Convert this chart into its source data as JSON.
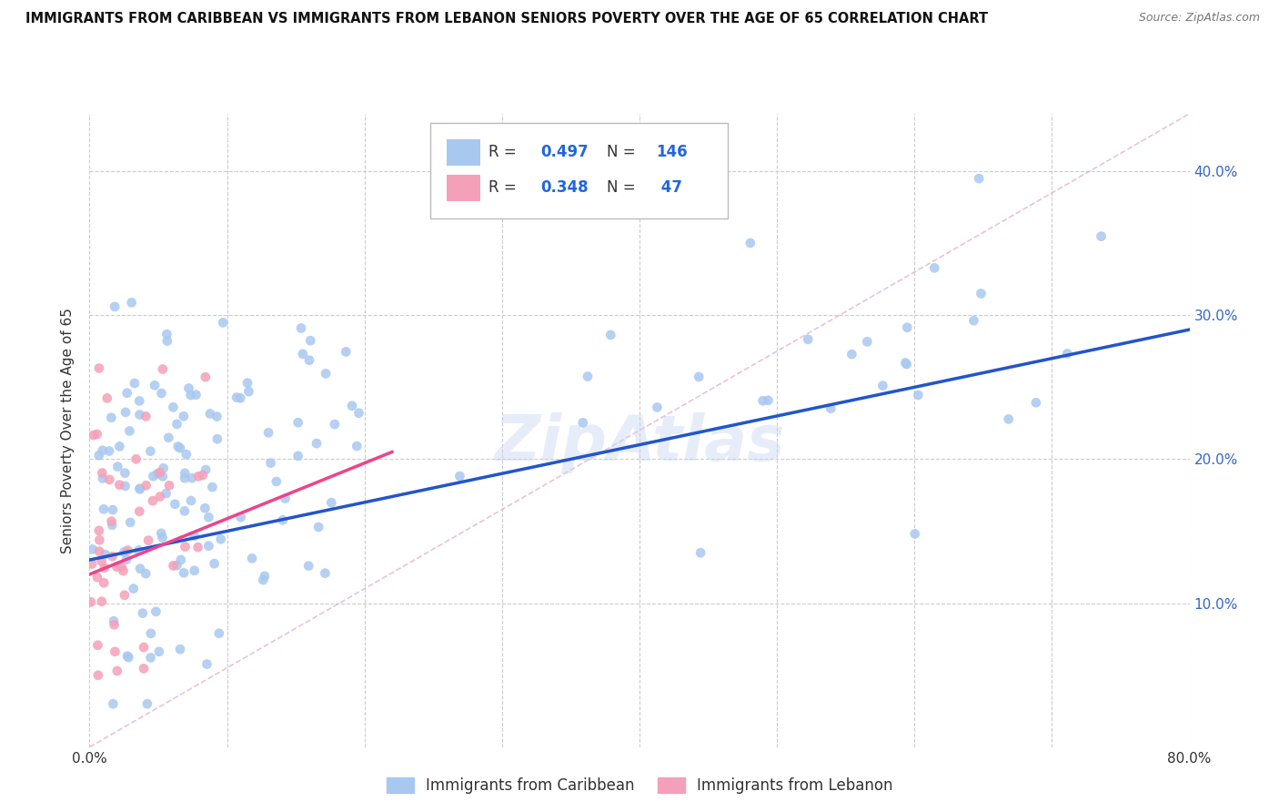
{
  "title": "IMMIGRANTS FROM CARIBBEAN VS IMMIGRANTS FROM LEBANON SENIORS POVERTY OVER THE AGE OF 65 CORRELATION CHART",
  "source": "Source: ZipAtlas.com",
  "ylabel": "Seniors Poverty Over the Age of 65",
  "xlim": [
    0.0,
    0.8
  ],
  "ylim": [
    0.0,
    0.44
  ],
  "xticks": [
    0.0,
    0.1,
    0.2,
    0.3,
    0.4,
    0.5,
    0.6,
    0.7,
    0.8
  ],
  "xticklabels": [
    "0.0%",
    "",
    "",
    "",
    "",
    "",
    "",
    "",
    "80.0%"
  ],
  "yticks": [
    0.0,
    0.1,
    0.2,
    0.3,
    0.4
  ],
  "right_yticklabels": [
    "",
    "10.0%",
    "20.0%",
    "30.0%",
    "40.0%"
  ],
  "watermark": "ZipAtlas",
  "blue_color": "#A8C8F0",
  "pink_color": "#F4A0B8",
  "line_blue": "#2255CC",
  "line_pink": "#EE4488",
  "R_blue": 0.497,
  "N_blue": 146,
  "R_pink": 0.348,
  "N_pink": 47,
  "blue_line_x0": 0.0,
  "blue_line_y0": 0.13,
  "blue_line_x1": 0.8,
  "blue_line_y1": 0.29,
  "pink_line_x0": 0.0,
  "pink_line_y0": 0.12,
  "pink_line_x1": 0.22,
  "pink_line_y1": 0.205,
  "diag_line_x0": 0.0,
  "diag_line_y0": 0.0,
  "diag_line_x1": 0.8,
  "diag_line_y1": 0.44,
  "grid_color": "#CCCCCC",
  "title_color": "#111111",
  "source_color": "#777777",
  "right_tick_color": "#3366CC",
  "ylabel_color": "#333333"
}
